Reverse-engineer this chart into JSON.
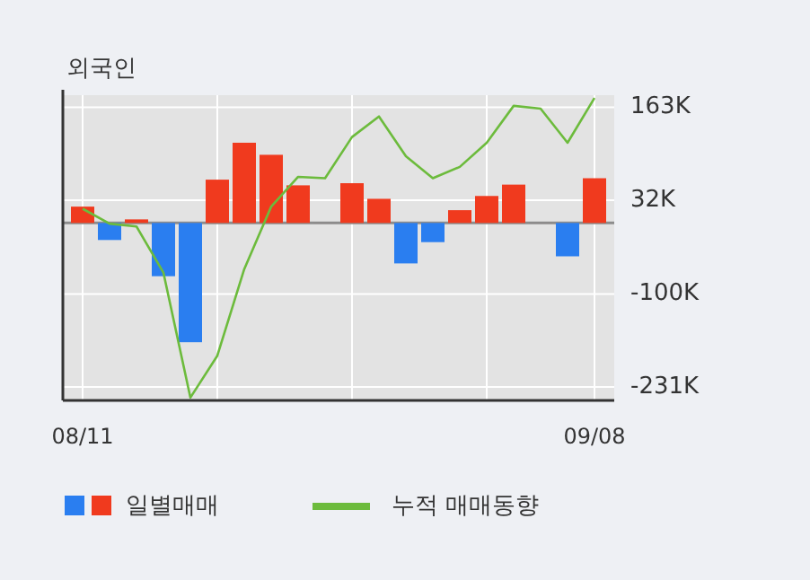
{
  "chart_data": {
    "type": "bar",
    "title": "외국인",
    "categories": [
      "08/11",
      null,
      null,
      null,
      null,
      null,
      null,
      null,
      null,
      null,
      null,
      null,
      null,
      null,
      null,
      null,
      null,
      null,
      null,
      "09/08"
    ],
    "series": [
      {
        "name": "일별매매",
        "colors": [
          "#f03a1e",
          "#2a7ef0",
          "#f03a1e",
          "#2a7ef0",
          "#2a7ef0",
          "#f03a1e",
          "#f03a1e",
          "#f03a1e",
          "#f03a1e",
          "#f03a1e",
          "#f03a1e",
          "#f03a1e",
          "#2a7ef0",
          "#2a7ef0",
          "#f03a1e",
          "#f03a1e",
          "#f03a1e",
          "#f03a1e",
          "#2a7ef0",
          "#f03a1e"
        ],
        "values": [
          23000,
          -24000,
          5000,
          -75000,
          -168000,
          61000,
          113000,
          96000,
          53000,
          0,
          56000,
          34000,
          -57000,
          -27000,
          18000,
          38000,
          54000,
          0,
          -47000,
          63000
        ]
      },
      {
        "name": "누적 매매동향",
        "type": "line",
        "color": "#6cbb3c",
        "values": [
          20000,
          -1000,
          -5000,
          -70000,
          -246000,
          -187000,
          -65000,
          23000,
          65000,
          63000,
          121000,
          150000,
          94000,
          63000,
          79000,
          113000,
          165000,
          161000,
          113000,
          176000
        ]
      }
    ],
    "ylim": [
      -250000,
      180000
    ],
    "yticks": [
      {
        "value": 163000,
        "label": "163K"
      },
      {
        "value": 32000,
        "label": "32K"
      },
      {
        "value": -100000,
        "label": "-100K"
      },
      {
        "value": -231000,
        "label": "-231K"
      }
    ],
    "ref_lines": [
      {
        "axis": "y",
        "value": 0,
        "color": "#8c8c8c"
      }
    ],
    "grid": true,
    "legend": "bottom"
  }
}
